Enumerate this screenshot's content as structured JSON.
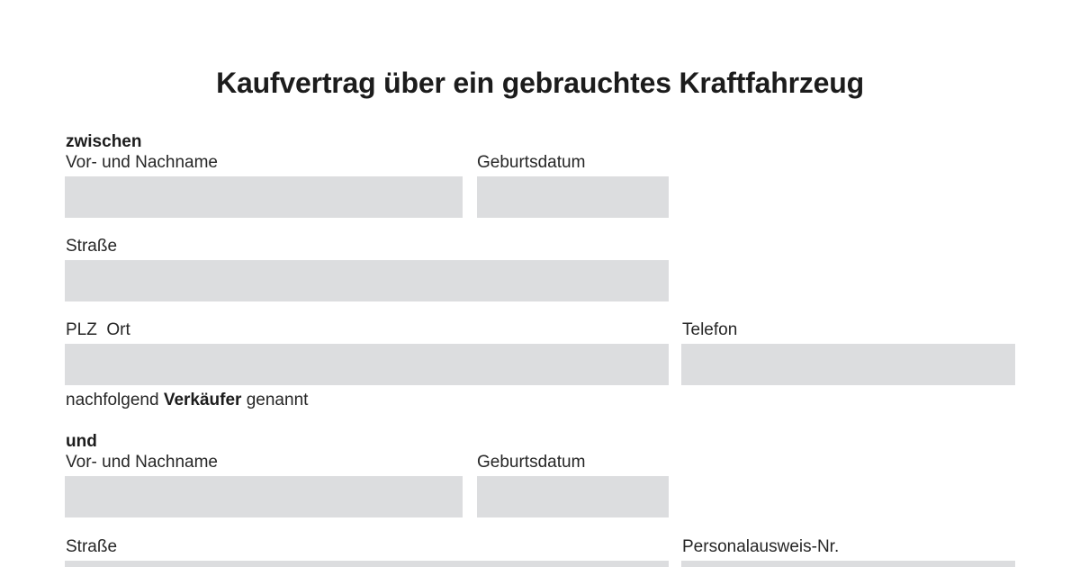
{
  "title": "Kaufvertrag über ein gebrauchtes Kraftfahrzeug",
  "seller": {
    "section_label": "zwischen",
    "name_label": "Vor- und Nachname",
    "birthdate_label": "Geburtsdatum",
    "street_label": "Straße",
    "city_label": "PLZ  Ort",
    "phone_label": "Telefon",
    "note_prefix": "nachfolgend ",
    "note_role": "Verkäufer",
    "note_suffix": " genannt"
  },
  "buyer": {
    "section_label": "und",
    "name_label": "Vor- und Nachname",
    "birthdate_label": "Geburtsdatum",
    "street_label": "Straße",
    "id_label": "Personalausweis-Nr."
  }
}
